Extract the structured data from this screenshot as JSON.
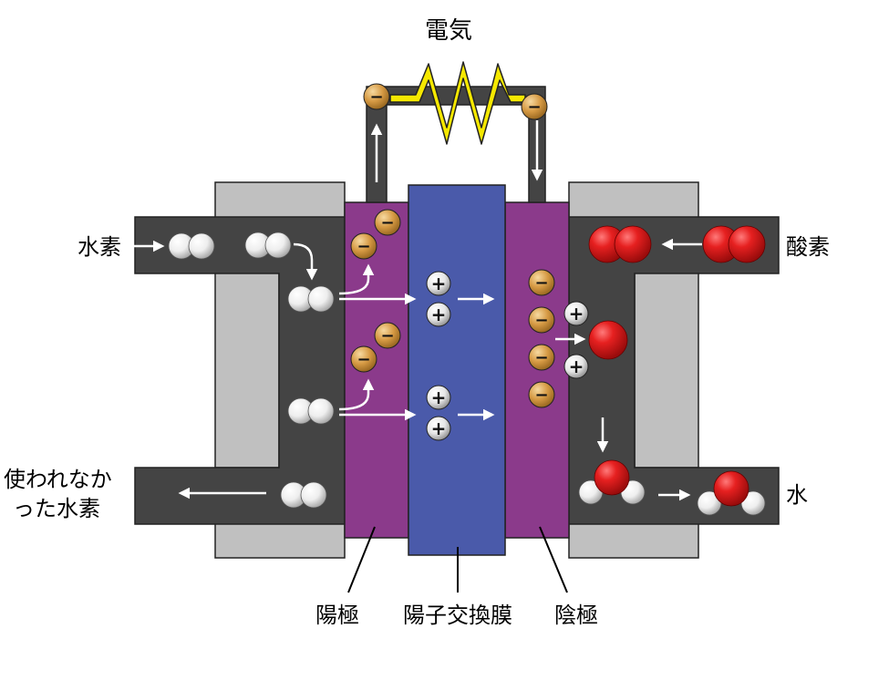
{
  "labels": {
    "electricity": "電気",
    "hydrogen_in": "水素",
    "oxygen_in": "酸素",
    "unused_hydrogen_line1": "使われなか",
    "unused_hydrogen_line2": "った水素",
    "water_out": "水",
    "anode": "陽極",
    "membrane": "陽子交換膜",
    "cathode": "陰極"
  },
  "ions": {
    "electron_sign": "−",
    "proton_sign": "+"
  },
  "colors": {
    "frame_gray": "#c0c0c0",
    "channel_dark": "#444444",
    "electrode_purple": "#8b3a8b",
    "membrane_blue": "#4a5aaa",
    "load_yellow": "#f5e800",
    "electron_gold": "#d9a24a",
    "oxygen_red": "#e01818",
    "hydrogen_white": "#f2f2f2"
  }
}
